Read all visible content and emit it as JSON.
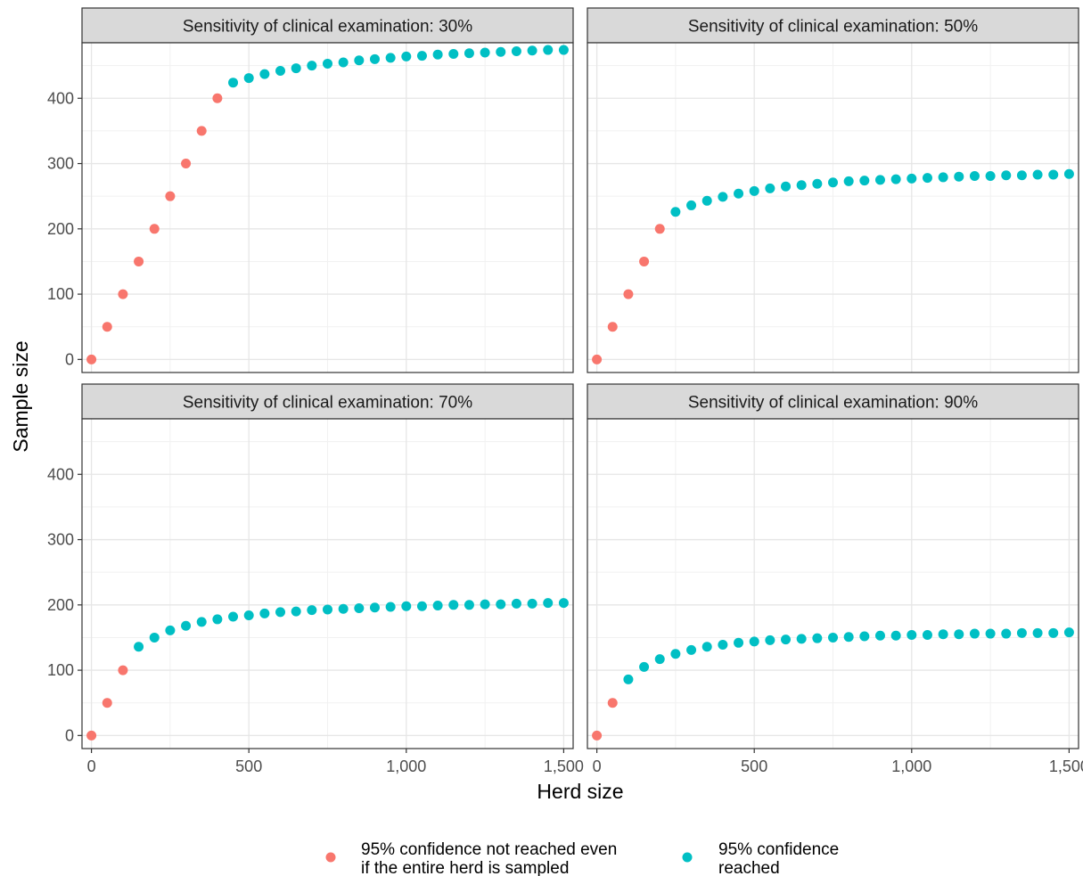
{
  "chart_data": {
    "type": "scatter",
    "xlabel": "Herd size",
    "ylabel": "Sample size",
    "xlim": [
      -30,
      1530
    ],
    "ylim": [
      -20,
      485
    ],
    "x_ticks": [
      0,
      500,
      1000,
      1500
    ],
    "x_tick_labels": [
      "0",
      "500",
      "1,000",
      "1,500"
    ],
    "y_ticks": [
      0,
      100,
      200,
      300,
      400
    ],
    "y_tick_labels": [
      "0",
      "100",
      "200",
      "300",
      "400"
    ],
    "grid": true,
    "legend_position": "bottom",
    "colors": {
      "not_reached": "#F8766D",
      "reached": "#00BFC4"
    },
    "legend": [
      {
        "key": "not_reached",
        "lines": [
          "95% confidence not reached even",
          "if the entire herd is sampled"
        ]
      },
      {
        "key": "reached",
        "lines": [
          "95% confidence",
          "reached"
        ]
      }
    ],
    "panels": [
      {
        "title": "Sensitivity of clinical examination: 30%",
        "not_reached": {
          "x": [
            0,
            50,
            100,
            150,
            200,
            250,
            300,
            350,
            400
          ],
          "y": [
            0,
            50,
            100,
            150,
            200,
            250,
            300,
            350,
            400
          ]
        },
        "reached": {
          "x": [
            450,
            500,
            550,
            600,
            650,
            700,
            750,
            800,
            850,
            900,
            950,
            1000,
            1050,
            1100,
            1150,
            1200,
            1250,
            1300,
            1350,
            1400,
            1450,
            1500
          ],
          "y": [
            424,
            431,
            437,
            442,
            446,
            450,
            453,
            455,
            458,
            460,
            462,
            464,
            465,
            467,
            468,
            469,
            470,
            471,
            472,
            473,
            474,
            474
          ]
        }
      },
      {
        "title": "Sensitivity of clinical examination: 50%",
        "not_reached": {
          "x": [
            0,
            50,
            100,
            150,
            200
          ],
          "y": [
            0,
            50,
            100,
            150,
            200
          ]
        },
        "reached": {
          "x": [
            250,
            300,
            350,
            400,
            450,
            500,
            550,
            600,
            650,
            700,
            750,
            800,
            850,
            900,
            950,
            1000,
            1050,
            1100,
            1150,
            1200,
            1250,
            1300,
            1350,
            1400,
            1450,
            1500
          ],
          "y": [
            226,
            236,
            243,
            249,
            254,
            258,
            262,
            265,
            267,
            269,
            271,
            273,
            274,
            275,
            276,
            277,
            278,
            279,
            280,
            281,
            281,
            282,
            282,
            283,
            283,
            284
          ]
        }
      },
      {
        "title": "Sensitivity of clinical examination: 70%",
        "not_reached": {
          "x": [
            0,
            50,
            100
          ],
          "y": [
            0,
            50,
            100
          ]
        },
        "reached": {
          "x": [
            150,
            200,
            250,
            300,
            350,
            400,
            450,
            500,
            550,
            600,
            650,
            700,
            750,
            800,
            850,
            900,
            950,
            1000,
            1050,
            1100,
            1150,
            1200,
            1250,
            1300,
            1350,
            1400,
            1450,
            1500
          ],
          "y": [
            136,
            150,
            161,
            168,
            174,
            178,
            182,
            184,
            187,
            189,
            190,
            192,
            193,
            194,
            195,
            196,
            197,
            198,
            198,
            199,
            200,
            200,
            201,
            201,
            202,
            202,
            203,
            203
          ]
        }
      },
      {
        "title": "Sensitivity of clinical examination: 90%",
        "not_reached": {
          "x": [
            0,
            50
          ],
          "y": [
            0,
            50
          ]
        },
        "reached": {
          "x": [
            100,
            150,
            200,
            250,
            300,
            350,
            400,
            450,
            500,
            550,
            600,
            650,
            700,
            750,
            800,
            850,
            900,
            950,
            1000,
            1050,
            1100,
            1150,
            1200,
            1250,
            1300,
            1350,
            1400,
            1450,
            1500
          ],
          "y": [
            86,
            105,
            117,
            125,
            131,
            136,
            139,
            142,
            144,
            146,
            147,
            148,
            149,
            150,
            151,
            152,
            153,
            153,
            154,
            154,
            155,
            155,
            156,
            156,
            156,
            157,
            157,
            157,
            158
          ]
        }
      }
    ]
  }
}
